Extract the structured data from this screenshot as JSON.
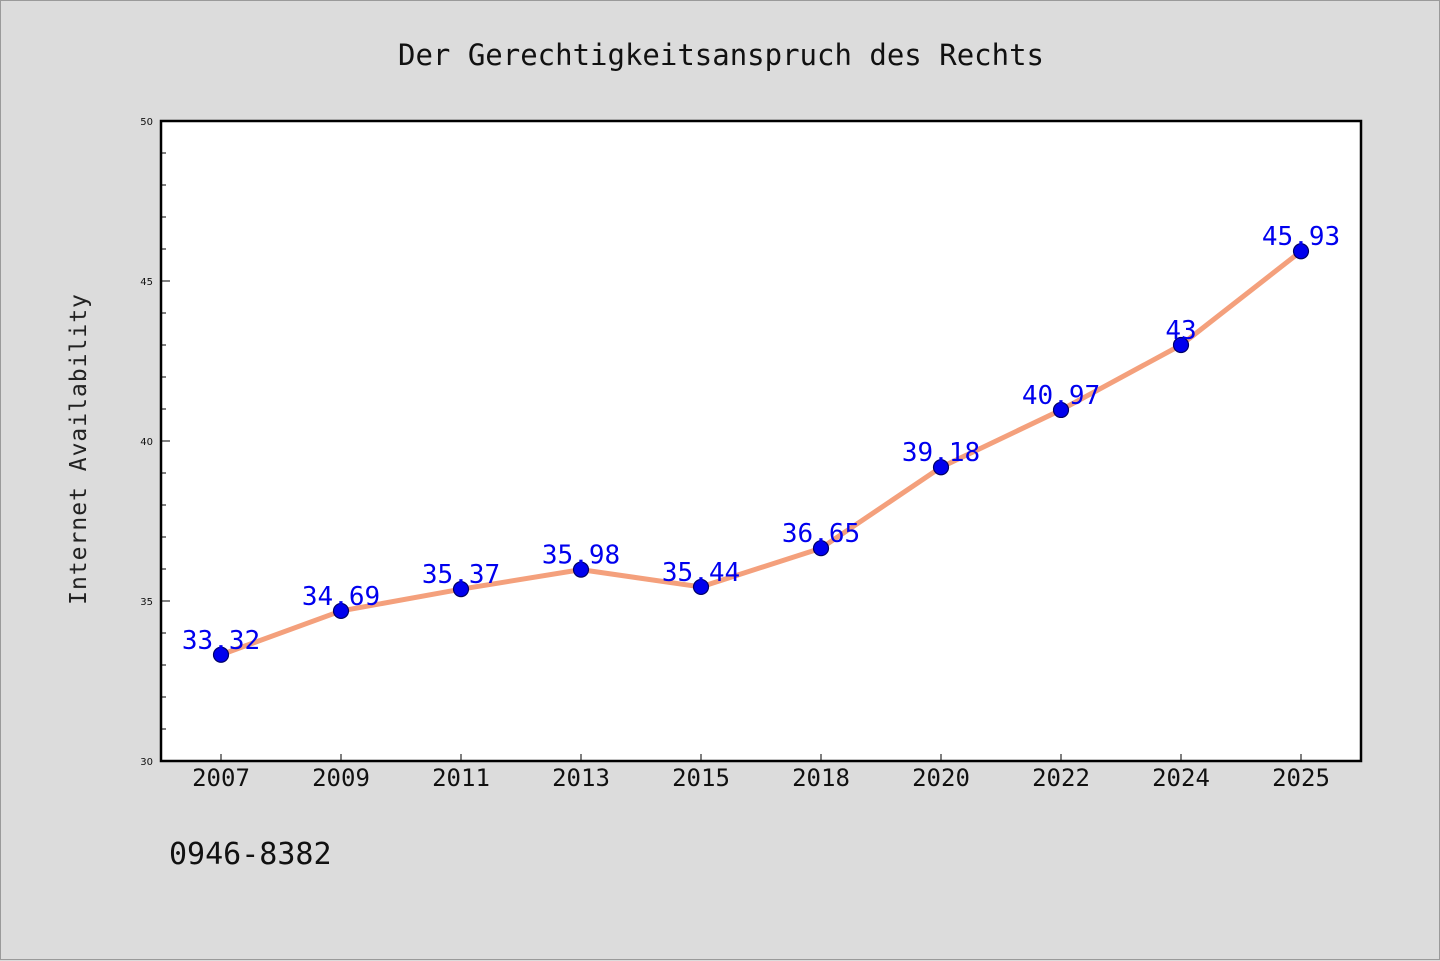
{
  "chart_data": {
    "type": "line",
    "title": "Der Gerechtigkeitsanspruch des Rechts",
    "xlabel": "",
    "ylabel": "Internet Availability",
    "categories": [
      "2007",
      "2009",
      "2011",
      "2013",
      "2015",
      "2018",
      "2020",
      "2022",
      "2024",
      "2025"
    ],
    "series": [
      {
        "values": [
          33.32,
          34.69,
          35.37,
          35.98,
          35.44,
          36.65,
          39.18,
          40.97,
          43,
          45.93
        ],
        "data_labels": [
          "33.32",
          "34.69",
          "35.37",
          "35.98",
          "35.44",
          "36.65",
          "39.18",
          "40.97",
          "43",
          "45.93"
        ]
      }
    ],
    "ylim": [
      30,
      50
    ],
    "yticks": [
      "30",
      "35",
      "40",
      "45",
      "50"
    ],
    "grid": false,
    "legend": "none",
    "colors": {
      "line": "#f4a07c",
      "marker": "#0000ee",
      "marker_edge": "#000066",
      "data_label": "#0000ee",
      "plot_background": "#ffffff",
      "figure_background": "#dcdcdc"
    },
    "annotations": [
      {
        "text": "0946-8382",
        "placement": "bottom-left"
      }
    ]
  }
}
